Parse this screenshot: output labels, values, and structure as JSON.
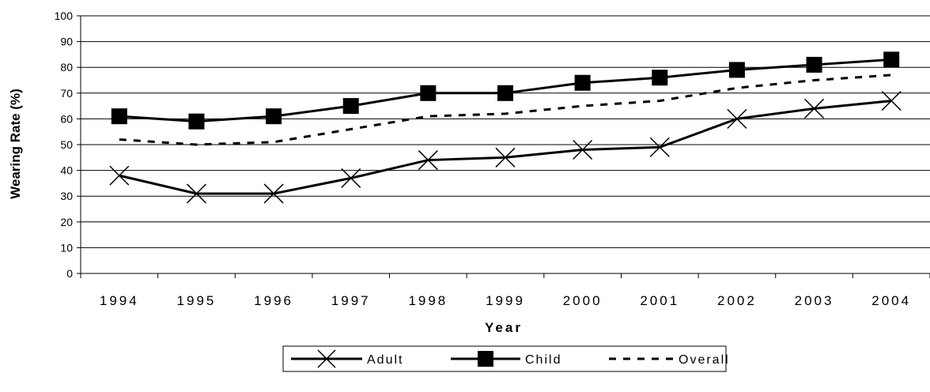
{
  "chart_data": {
    "type": "line",
    "title": "",
    "xlabel": "Year",
    "ylabel": "Wearing Rate (%)",
    "ylim": [
      0,
      100
    ],
    "yticks": [
      "0",
      "10",
      "20",
      "30",
      "40",
      "50",
      "60",
      "70",
      "80",
      "90",
      "100"
    ],
    "categories": [
      "1994",
      "1995",
      "1996",
      "1997",
      "1998",
      "1999",
      "2000",
      "2001",
      "2002",
      "2003",
      "2004"
    ],
    "grid": "horizontal",
    "legend_position": "bottom",
    "series": [
      {
        "name": "Adult",
        "marker": "x",
        "line": "solid",
        "values": [
          38,
          31,
          31,
          37,
          44,
          45,
          48,
          49,
          60,
          64,
          67
        ]
      },
      {
        "name": "Child",
        "marker": "square",
        "line": "solid",
        "values": [
          61,
          59,
          61,
          65,
          70,
          70,
          74,
          76,
          79,
          81,
          83
        ]
      },
      {
        "name": "Overall",
        "marker": "none",
        "line": "dashed",
        "values": [
          52,
          50,
          51,
          56,
          61,
          62,
          65,
          67,
          72,
          75,
          77
        ]
      }
    ],
    "colors": {
      "line": "#000000",
      "grid": "#000000",
      "background": "#ffffff"
    }
  }
}
